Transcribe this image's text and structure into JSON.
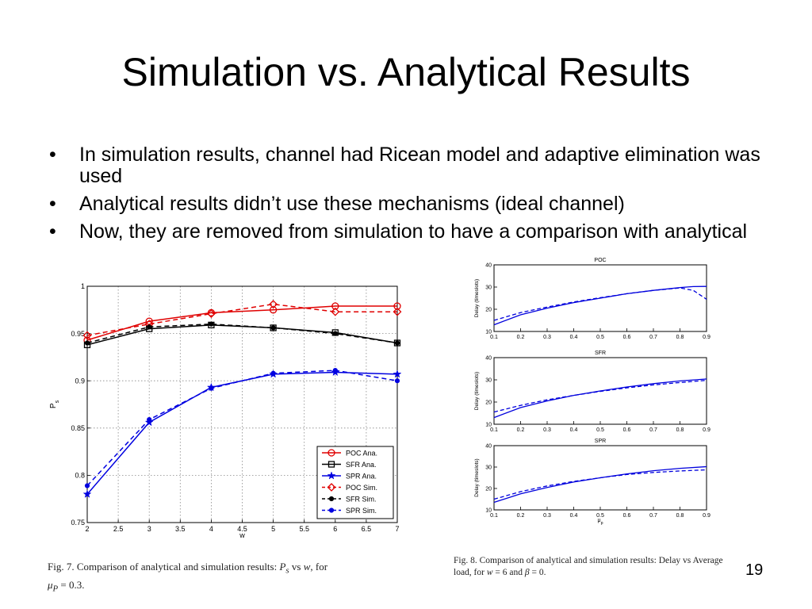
{
  "slide": {
    "title": "Simulation vs. Analytical Results",
    "bullets": [
      "In simulation results, channel had Ricean model and adaptive elimination was used",
      "Analytical results didn’t use these mechanisms (ideal channel)",
      "Now, they are removed from simulation to have a comparison with analytical"
    ],
    "page_number": "19",
    "fig7_caption": {
      "prefix": "Fig.   7.    Comparison of analytical and simulation results: ",
      "ps": "P",
      "ps_sub": "s",
      "vs": " vs ",
      "w": "w",
      "for": ", for",
      "mu": "μ",
      "mu_sub": "P",
      "eq": " = 0.3."
    },
    "fig8_caption": {
      "text1": "Fig.  8.   Comparison of analytical and simulation results: Delay vs Average load, for ",
      "w": "w",
      "mid": " = 6 and ",
      "beta": "β",
      "end": " = 0."
    }
  },
  "chart_data": [
    {
      "type": "line",
      "title": "",
      "xlabel": "w",
      "ylabel": "P",
      "ylabel_sub": "s",
      "xlim": [
        2,
        7
      ],
      "ylim": [
        0.75,
        1
      ],
      "xticks": [
        "2",
        "2.5",
        "3",
        "3.5",
        "4",
        "4.5",
        "5",
        "5.5",
        "6",
        "6.5",
        "7"
      ],
      "yticks": [
        "0.75",
        "0.8",
        "0.85",
        "0.9",
        "0.95",
        "1"
      ],
      "grid": true,
      "legend_position": "bottom-right",
      "x": [
        2,
        3,
        4,
        5,
        6,
        7
      ],
      "series": [
        {
          "name": "POC Ana.",
          "values": [
            0.943,
            0.963,
            0.972,
            0.975,
            0.979,
            0.979
          ],
          "color": "#e00000",
          "dash": "solid",
          "marker": "circle"
        },
        {
          "name": "SFR Ana.",
          "values": [
            0.938,
            0.955,
            0.959,
            0.956,
            0.951,
            0.94
          ],
          "color": "#000000",
          "dash": "solid",
          "marker": "square"
        },
        {
          "name": "SPR Ana.",
          "values": [
            0.78,
            0.856,
            0.893,
            0.907,
            0.909,
            0.907
          ],
          "color": "#0000e0",
          "dash": "solid",
          "marker": "star"
        },
        {
          "name": "POC Sim.",
          "values": [
            0.948,
            0.96,
            0.971,
            0.981,
            0.973,
            0.973
          ],
          "color": "#e00000",
          "dash": "dashed",
          "marker": "diamond"
        },
        {
          "name": "SFR Sim.",
          "values": [
            0.94,
            0.957,
            0.96,
            0.956,
            0.95,
            0.94
          ],
          "color": "#000000",
          "dash": "dashed",
          "marker": "dot"
        },
        {
          "name": "SPR Sim.",
          "values": [
            0.789,
            0.859,
            0.892,
            0.908,
            0.911,
            0.9
          ],
          "color": "#0000e0",
          "dash": "dashed",
          "marker": "dot"
        }
      ]
    },
    {
      "type": "line",
      "title": "POC",
      "xlabel": "",
      "ylabel": "Delay (timeslots)",
      "xlim": [
        0.1,
        0.9
      ],
      "ylim": [
        10,
        40
      ],
      "xticks": [
        "0.1",
        "0.2",
        "0.3",
        "0.4",
        "0.5",
        "0.6",
        "0.7",
        "0.8",
        "0.9"
      ],
      "yticks": [
        "10",
        "20",
        "30",
        "40"
      ],
      "x": [
        0.1,
        0.2,
        0.3,
        0.4,
        0.5,
        0.6,
        0.7,
        0.8,
        0.85,
        0.9
      ],
      "series": [
        {
          "values": [
            13,
            17.5,
            20.5,
            23,
            25,
            27,
            28.5,
            29.8,
            30.2,
            30.3
          ],
          "color": "#0000dd",
          "dash": "solid"
        },
        {
          "values": [
            15,
            18.5,
            21,
            23.3,
            25.2,
            27,
            28.5,
            29.6,
            28.5,
            24.5
          ],
          "color": "#0000dd",
          "dash": "dashed"
        }
      ]
    },
    {
      "type": "line",
      "title": "SFR",
      "xlabel": "",
      "ylabel": "Delay (timeslots)",
      "xlim": [
        0.1,
        0.9
      ],
      "ylim": [
        10,
        40
      ],
      "xticks": [
        "0.1",
        "0.2",
        "0.3",
        "0.4",
        "0.5",
        "0.6",
        "0.7",
        "0.8",
        "0.9"
      ],
      "yticks": [
        "10",
        "20",
        "30",
        "40"
      ],
      "x": [
        0.1,
        0.2,
        0.3,
        0.4,
        0.5,
        0.6,
        0.7,
        0.8,
        0.9
      ],
      "series": [
        {
          "values": [
            13,
            17.5,
            20.5,
            23,
            25,
            26.8,
            28.3,
            29.5,
            30.4
          ],
          "color": "#0000dd",
          "dash": "solid"
        },
        {
          "values": [
            15.5,
            18.5,
            21,
            23,
            24.8,
            26.4,
            27.7,
            28.8,
            29.8
          ],
          "color": "#0000dd",
          "dash": "dashed"
        }
      ]
    },
    {
      "type": "line",
      "title": "SPR",
      "xlabel": "μ",
      "xlabel_sub": "p",
      "ylabel": "Delay (timeslots)",
      "xlim": [
        0.1,
        0.9
      ],
      "ylim": [
        10,
        40
      ],
      "xticks": [
        "0.1",
        "0.2",
        "0.3",
        "0.4",
        "0.5",
        "0.6",
        "0.7",
        "0.8",
        "0.9"
      ],
      "yticks": [
        "10",
        "20",
        "30",
        "40"
      ],
      "x": [
        0.1,
        0.2,
        0.3,
        0.4,
        0.5,
        0.6,
        0.7,
        0.8,
        0.9
      ],
      "series": [
        {
          "values": [
            13.5,
            17.5,
            20.5,
            23,
            25,
            26.8,
            28.3,
            29.4,
            30.2
          ],
          "color": "#0000dd",
          "dash": "solid"
        },
        {
          "values": [
            15,
            18.5,
            21.2,
            23.3,
            25,
            26.5,
            27.5,
            28.2,
            28.7
          ],
          "color": "#0000dd",
          "dash": "dashed"
        }
      ]
    }
  ]
}
